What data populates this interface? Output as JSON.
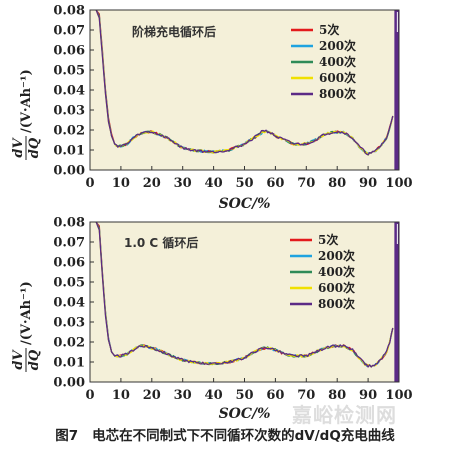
{
  "figure": {
    "caption_number": "图7",
    "caption_text": "电芯在不同制式下不同循环次数的dV/dQ充电曲线",
    "watermark": "嘉峪检测网"
  },
  "chart_data": [
    {
      "type": "line",
      "annotation": "阶梯充电循环后",
      "xlabel": "SOC/%",
      "ylabel_numerator": "dV",
      "ylabel_denominator": "dQ",
      "ylabel_unit": "/(V·Ah⁻¹)",
      "xlim": [
        0,
        100
      ],
      "ylim": [
        0,
        0.08
      ],
      "xticks": [
        0,
        10,
        20,
        30,
        40,
        50,
        60,
        70,
        80,
        90,
        100
      ],
      "yticks": [
        0.0,
        0.01,
        0.02,
        0.03,
        0.04,
        0.05,
        0.06,
        0.07,
        0.08
      ],
      "background": "#f4f0d9",
      "grid": false,
      "legend_position": "top-right",
      "x": [
        2,
        3,
        4,
        5,
        6,
        7,
        8,
        9,
        10,
        12,
        14,
        16,
        18,
        20,
        22,
        25,
        28,
        30,
        33,
        36,
        40,
        45,
        50,
        53,
        56,
        58,
        60,
        63,
        66,
        70,
        73,
        76,
        79,
        82,
        85,
        87,
        89,
        90,
        92,
        94,
        96,
        97,
        98
      ],
      "series": [
        {
          "name": "5次",
          "color": "#e31a1c",
          "values": [
            0.08,
            0.078,
            0.06,
            0.04,
            0.026,
            0.018,
            0.013,
            0.012,
            0.012,
            0.013,
            0.016,
            0.018,
            0.019,
            0.019,
            0.018,
            0.016,
            0.013,
            0.011,
            0.01,
            0.0095,
            0.009,
            0.01,
            0.013,
            0.016,
            0.019,
            0.019,
            0.017,
            0.015,
            0.013,
            0.013,
            0.015,
            0.018,
            0.019,
            0.019,
            0.016,
            0.012,
            0.009,
            0.008,
            0.009,
            0.012,
            0.016,
            0.021,
            0.027
          ]
        },
        {
          "name": "200次",
          "color": "#1fa3e0",
          "values": [
            0.08,
            0.077,
            0.059,
            0.039,
            0.025,
            0.017,
            0.013,
            0.012,
            0.012,
            0.013,
            0.016,
            0.018,
            0.019,
            0.019,
            0.018,
            0.016,
            0.013,
            0.011,
            0.01,
            0.0095,
            0.009,
            0.01,
            0.013,
            0.016,
            0.019,
            0.019,
            0.017,
            0.015,
            0.013,
            0.013,
            0.015,
            0.018,
            0.019,
            0.019,
            0.016,
            0.012,
            0.009,
            0.008,
            0.009,
            0.012,
            0.016,
            0.021,
            0.027
          ]
        },
        {
          "name": "400次",
          "color": "#2e8b57",
          "values": [
            0.08,
            0.077,
            0.058,
            0.039,
            0.025,
            0.017,
            0.013,
            0.012,
            0.012,
            0.013,
            0.016,
            0.018,
            0.019,
            0.019,
            0.018,
            0.016,
            0.013,
            0.011,
            0.01,
            0.0095,
            0.009,
            0.01,
            0.013,
            0.016,
            0.019,
            0.019,
            0.017,
            0.015,
            0.013,
            0.013,
            0.015,
            0.018,
            0.019,
            0.019,
            0.016,
            0.012,
            0.009,
            0.008,
            0.009,
            0.012,
            0.016,
            0.021,
            0.027
          ]
        },
        {
          "name": "600次",
          "color": "#f0e000",
          "values": [
            0.08,
            0.076,
            0.058,
            0.038,
            0.024,
            0.017,
            0.013,
            0.012,
            0.012,
            0.013,
            0.016,
            0.018,
            0.019,
            0.019,
            0.018,
            0.016,
            0.013,
            0.011,
            0.01,
            0.0095,
            0.009,
            0.01,
            0.013,
            0.016,
            0.019,
            0.019,
            0.017,
            0.015,
            0.013,
            0.013,
            0.015,
            0.018,
            0.019,
            0.019,
            0.016,
            0.012,
            0.009,
            0.008,
            0.009,
            0.012,
            0.016,
            0.021,
            0.027
          ]
        },
        {
          "name": "800次",
          "color": "#5b2a86",
          "values": [
            0.08,
            0.076,
            0.057,
            0.038,
            0.024,
            0.017,
            0.013,
            0.012,
            0.012,
            0.013,
            0.016,
            0.018,
            0.019,
            0.019,
            0.018,
            0.016,
            0.013,
            0.011,
            0.01,
            0.0095,
            0.009,
            0.01,
            0.013,
            0.016,
            0.02,
            0.019,
            0.017,
            0.015,
            0.013,
            0.013,
            0.015,
            0.018,
            0.019,
            0.019,
            0.016,
            0.012,
            0.009,
            0.008,
            0.009,
            0.012,
            0.016,
            0.021,
            0.027
          ]
        }
      ],
      "end_band": {
        "from": 98.5,
        "to": 100,
        "color": "#5b2a86"
      }
    },
    {
      "type": "line",
      "annotation": "1.0 C 循环后",
      "xlabel": "SOC/%",
      "ylabel_numerator": "dV",
      "ylabel_denominator": "dQ",
      "ylabel_unit": "/(V·Ah⁻¹)",
      "xlim": [
        0,
        100
      ],
      "ylim": [
        0,
        0.08
      ],
      "xticks": [
        0,
        10,
        20,
        30,
        40,
        50,
        60,
        70,
        80,
        90,
        100
      ],
      "yticks": [
        0.0,
        0.01,
        0.02,
        0.03,
        0.04,
        0.05,
        0.06,
        0.07,
        0.08
      ],
      "background": "#f4f0d9",
      "grid": false,
      "legend_position": "right",
      "x": [
        2,
        3,
        4,
        5,
        6,
        7,
        8,
        9,
        10,
        12,
        14,
        16,
        18,
        20,
        22,
        25,
        28,
        30,
        33,
        36,
        40,
        45,
        50,
        53,
        56,
        58,
        60,
        63,
        66,
        70,
        73,
        76,
        79,
        82,
        85,
        87,
        89,
        90,
        92,
        94,
        96,
        97,
        98
      ],
      "series": [
        {
          "name": "5次",
          "color": "#e31a1c",
          "values": [
            0.08,
            0.078,
            0.055,
            0.035,
            0.022,
            0.015,
            0.013,
            0.013,
            0.013,
            0.014,
            0.016,
            0.018,
            0.018,
            0.017,
            0.016,
            0.014,
            0.012,
            0.011,
            0.01,
            0.0095,
            0.009,
            0.01,
            0.012,
            0.015,
            0.017,
            0.017,
            0.016,
            0.014,
            0.013,
            0.013,
            0.015,
            0.017,
            0.018,
            0.018,
            0.016,
            0.012,
            0.009,
            0.008,
            0.008,
            0.011,
            0.015,
            0.02,
            0.027
          ]
        },
        {
          "name": "200次",
          "color": "#1fa3e0",
          "values": [
            0.08,
            0.077,
            0.054,
            0.035,
            0.022,
            0.015,
            0.013,
            0.013,
            0.013,
            0.014,
            0.016,
            0.018,
            0.018,
            0.017,
            0.016,
            0.014,
            0.012,
            0.011,
            0.01,
            0.0095,
            0.009,
            0.01,
            0.012,
            0.015,
            0.017,
            0.017,
            0.016,
            0.014,
            0.013,
            0.013,
            0.015,
            0.017,
            0.018,
            0.018,
            0.016,
            0.012,
            0.009,
            0.008,
            0.008,
            0.011,
            0.015,
            0.02,
            0.027
          ]
        },
        {
          "name": "400次",
          "color": "#2e8b57",
          "values": [
            0.08,
            0.077,
            0.054,
            0.034,
            0.021,
            0.015,
            0.013,
            0.013,
            0.013,
            0.014,
            0.016,
            0.018,
            0.018,
            0.017,
            0.016,
            0.014,
            0.012,
            0.011,
            0.01,
            0.0095,
            0.009,
            0.01,
            0.012,
            0.015,
            0.017,
            0.017,
            0.016,
            0.014,
            0.013,
            0.013,
            0.015,
            0.017,
            0.018,
            0.018,
            0.016,
            0.012,
            0.009,
            0.008,
            0.008,
            0.011,
            0.015,
            0.02,
            0.027
          ]
        },
        {
          "name": "600次",
          "color": "#f0e000",
          "values": [
            0.08,
            0.076,
            0.053,
            0.034,
            0.021,
            0.015,
            0.013,
            0.013,
            0.013,
            0.014,
            0.016,
            0.018,
            0.018,
            0.017,
            0.016,
            0.014,
            0.012,
            0.011,
            0.01,
            0.0095,
            0.009,
            0.01,
            0.012,
            0.015,
            0.017,
            0.017,
            0.016,
            0.014,
            0.013,
            0.013,
            0.015,
            0.017,
            0.018,
            0.018,
            0.016,
            0.012,
            0.009,
            0.008,
            0.008,
            0.011,
            0.015,
            0.02,
            0.027
          ]
        },
        {
          "name": "800次",
          "color": "#5b2a86",
          "values": [
            0.08,
            0.076,
            0.053,
            0.033,
            0.021,
            0.015,
            0.013,
            0.013,
            0.013,
            0.014,
            0.016,
            0.018,
            0.018,
            0.017,
            0.016,
            0.014,
            0.012,
            0.011,
            0.01,
            0.0095,
            0.009,
            0.01,
            0.012,
            0.015,
            0.017,
            0.017,
            0.016,
            0.014,
            0.013,
            0.013,
            0.015,
            0.017,
            0.018,
            0.018,
            0.016,
            0.012,
            0.009,
            0.008,
            0.008,
            0.011,
            0.015,
            0.02,
            0.027
          ]
        }
      ],
      "end_band": {
        "from": 98.5,
        "to": 100,
        "color": "#5b2a86"
      }
    }
  ]
}
